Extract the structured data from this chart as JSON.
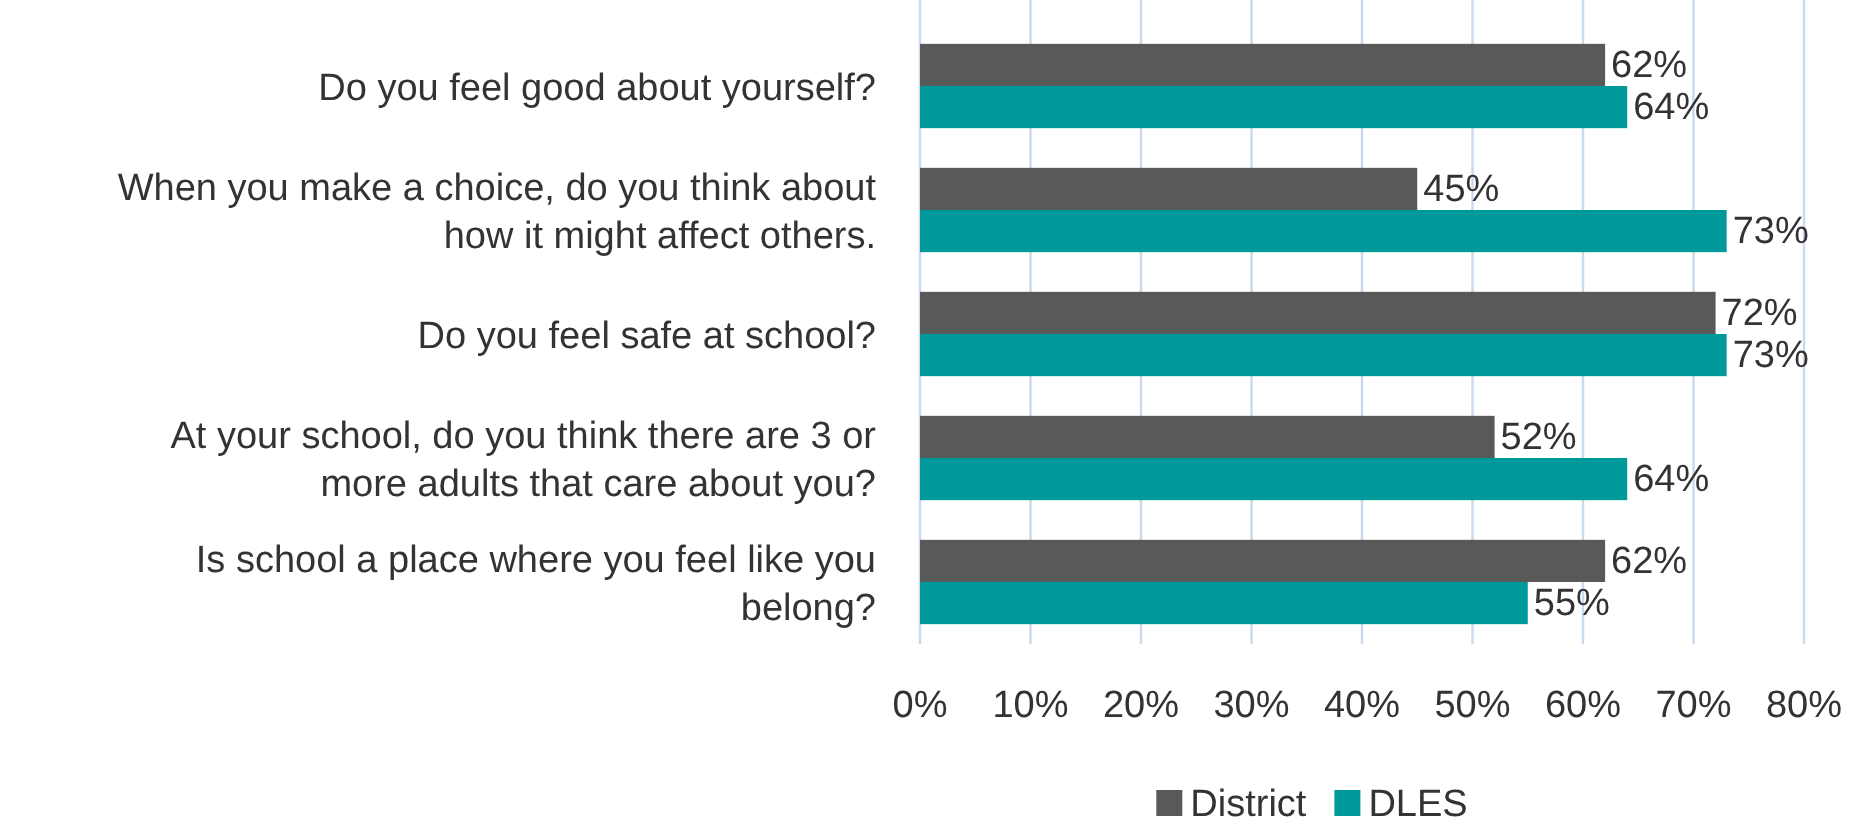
{
  "chart_data": {
    "type": "bar",
    "orientation": "horizontal",
    "categories": [
      "Do you feel good about yourself?",
      "When you make a choice, do you think about how it might affect others.",
      "Do you feel safe at school?",
      "At your school, do you think there are 3 or more adults that care about you?",
      "Is school a place where you feel like you belong?"
    ],
    "series": [
      {
        "name": "District",
        "color": "#595959",
        "values": [
          62,
          45,
          72,
          52,
          62
        ],
        "value_labels": [
          "62%",
          "45%",
          "72%",
          "52%",
          "62%"
        ]
      },
      {
        "name": "DLES",
        "color": "#009999",
        "values": [
          64,
          73,
          73,
          64,
          55
        ],
        "value_labels": [
          "64%",
          "73%",
          "73%",
          "64%",
          "55%"
        ]
      }
    ],
    "xlim": [
      0,
      80
    ],
    "xticks": [
      {
        "value": 0,
        "label": "0%"
      },
      {
        "value": 10,
        "label": "10%"
      },
      {
        "value": 20,
        "label": "20%"
      },
      {
        "value": 30,
        "label": "30%"
      },
      {
        "value": 40,
        "label": "40%"
      },
      {
        "value": 50,
        "label": "50%"
      },
      {
        "value": 60,
        "label": "60%"
      },
      {
        "value": 70,
        "label": "70%"
      },
      {
        "value": 80,
        "label": "80%"
      }
    ],
    "grid": "x",
    "legend": "bottom"
  }
}
